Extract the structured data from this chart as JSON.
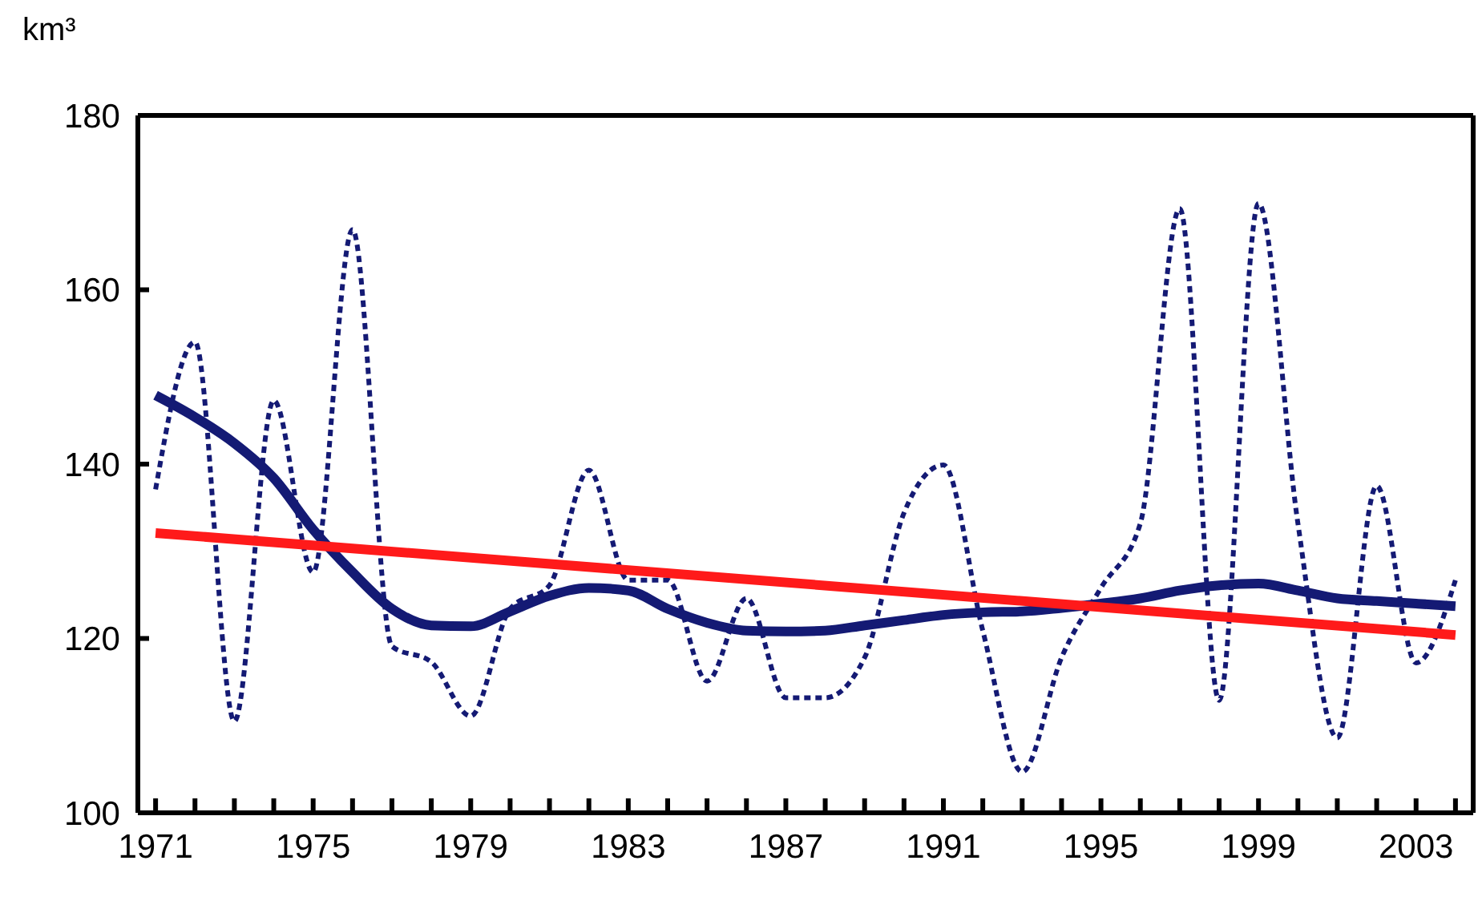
{
  "chart_data": {
    "type": "line",
    "ylabel": "km³",
    "x": [
      1971,
      1972,
      1973,
      1974,
      1975,
      1976,
      1977,
      1978,
      1979,
      1980,
      1981,
      1982,
      1983,
      1984,
      1985,
      1986,
      1987,
      1988,
      1989,
      1990,
      1991,
      1992,
      1993,
      1994,
      1995,
      1996,
      1997,
      1998,
      1999,
      2000,
      2001,
      2002,
      2003,
      2004
    ],
    "series": [
      {
        "color": "#141a74",
        "line_style": "dashed",
        "values": [
          137.1,
          154.0,
          110.5,
          147.3,
          127.6,
          166.9,
          119.1,
          117.3,
          111.1,
          123.4,
          126.1,
          139.3,
          126.7,
          126.7,
          115.1,
          124.6,
          113.2,
          113.2,
          117.8,
          134.4,
          139.9,
          120.9,
          104.7,
          117.8,
          125.8,
          133.2,
          169.3,
          112.9,
          169.9,
          133.2,
          108.6,
          137.5,
          117.2,
          126.7
        ]
      },
      {
        "color": "#141a74",
        "line_style": "solid",
        "values": [
          147.9,
          145.4,
          142.4,
          138.4,
          132.5,
          127.6,
          123.4,
          121.5,
          121.4,
          123.1,
          124.9,
          125.8,
          125.5,
          123.4,
          121.8,
          120.9,
          120.8,
          120.9,
          121.5,
          122.1,
          122.7,
          123.0,
          123.1,
          123.5,
          124.0,
          124.6,
          125.5,
          126.1,
          126.3,
          125.5,
          124.6,
          124.3,
          124.0,
          123.7
        ]
      },
      {
        "type": "line",
        "color": "#ff1a1a",
        "line_style": "solid",
        "x": [
          1971,
          2004
        ],
        "values": [
          132.1,
          120.4
        ]
      }
    ],
    "xlim": [
      1970.55,
      2004.45
    ],
    "xticks": [
      {
        "value": 1971,
        "label": "1971"
      },
      {
        "value": 1972,
        "label": null
      },
      {
        "value": 1973,
        "label": null
      },
      {
        "value": 1974,
        "label": null
      },
      {
        "value": 1975,
        "label": "1975"
      },
      {
        "value": 1976,
        "label": null
      },
      {
        "value": 1977,
        "label": null
      },
      {
        "value": 1978,
        "label": null
      },
      {
        "value": 1979,
        "label": "1979"
      },
      {
        "value": 1980,
        "label": null
      },
      {
        "value": 1981,
        "label": null
      },
      {
        "value": 1982,
        "label": null
      },
      {
        "value": 1983,
        "label": "1983"
      },
      {
        "value": 1984,
        "label": null
      },
      {
        "value": 1985,
        "label": null
      },
      {
        "value": 1986,
        "label": null
      },
      {
        "value": 1987,
        "label": "1987"
      },
      {
        "value": 1988,
        "label": null
      },
      {
        "value": 1989,
        "label": null
      },
      {
        "value": 1990,
        "label": null
      },
      {
        "value": 1991,
        "label": "1991"
      },
      {
        "value": 1992,
        "label": null
      },
      {
        "value": 1993,
        "label": null
      },
      {
        "value": 1994,
        "label": null
      },
      {
        "value": 1995,
        "label": "1995"
      },
      {
        "value": 1996,
        "label": null
      },
      {
        "value": 1997,
        "label": null
      },
      {
        "value": 1998,
        "label": null
      },
      {
        "value": 1999,
        "label": "1999"
      },
      {
        "value": 2000,
        "label": null
      },
      {
        "value": 2001,
        "label": null
      },
      {
        "value": 2002,
        "label": null
      },
      {
        "value": 2003,
        "label": "2003"
      },
      {
        "value": 2004,
        "label": null
      }
    ],
    "ylim": [
      100,
      180
    ],
    "yticks": [
      100,
      120,
      140,
      160,
      180
    ],
    "grid": false,
    "legend": false,
    "marker": "none"
  }
}
